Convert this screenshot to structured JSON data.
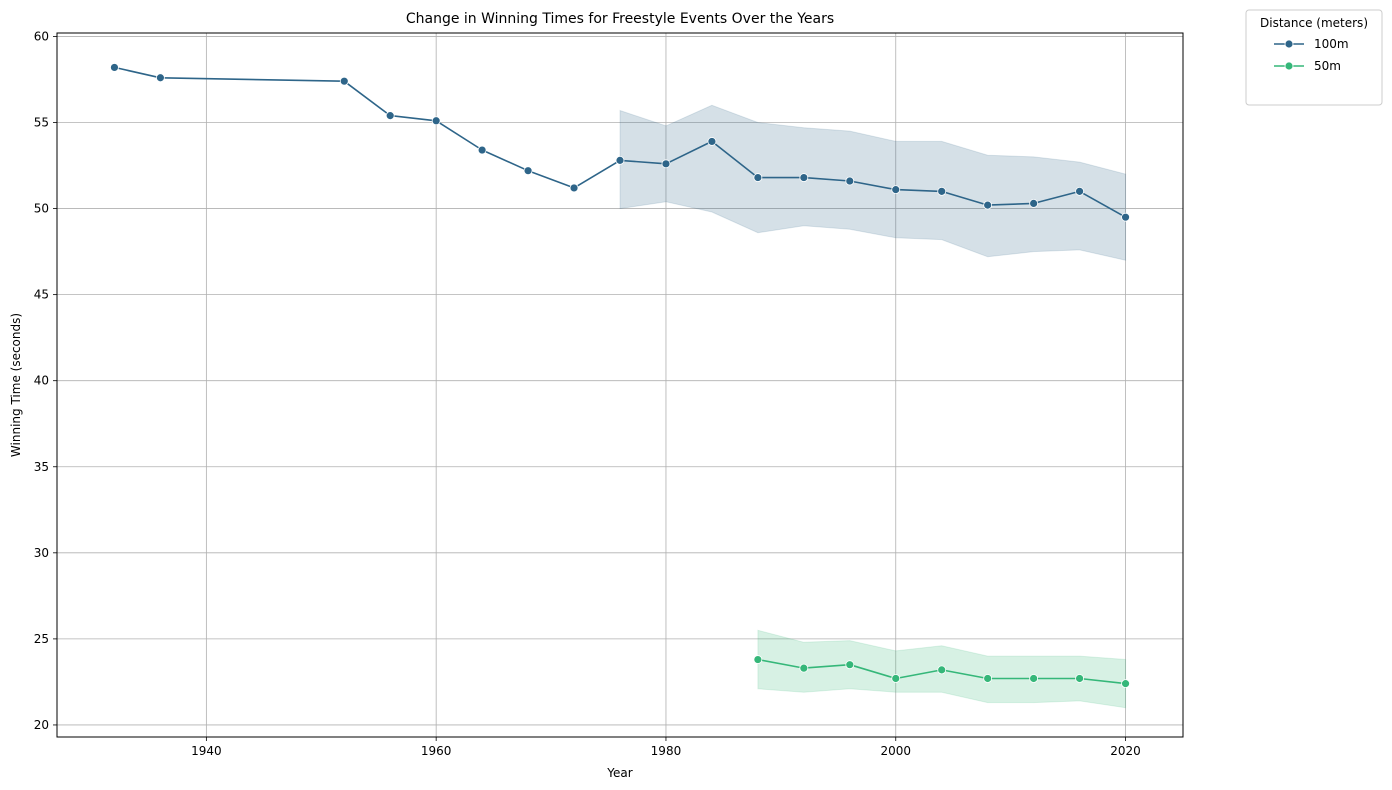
{
  "chart_data": {
    "type": "line",
    "title": "Change in Winning Times for Freestyle Events Over the Years",
    "xlabel": "Year",
    "ylabel": "Winning Time (seconds)",
    "xlim": [
      1927,
      2025
    ],
    "ylim": [
      19.3,
      60.2
    ],
    "xticks": [
      1940,
      1960,
      1980,
      2000,
      2020
    ],
    "yticks": [
      20,
      25,
      30,
      35,
      40,
      45,
      50,
      55,
      60
    ],
    "grid": true,
    "legend": {
      "title": "Distance (meters)",
      "placement": "outside-top-right"
    },
    "series": [
      {
        "name": "100m",
        "color": "#2e6589",
        "x": [
          1932,
          1936,
          1952,
          1956,
          1960,
          1964,
          1968,
          1972,
          1976,
          1980,
          1984,
          1988,
          1992,
          1996,
          2000,
          2004,
          2008,
          2012,
          2016,
          2020
        ],
        "y": [
          58.2,
          57.6,
          57.4,
          55.4,
          55.1,
          53.4,
          52.2,
          51.2,
          52.8,
          52.6,
          53.9,
          51.8,
          51.8,
          51.6,
          51.1,
          51.0,
          50.2,
          50.3,
          51.0,
          49.5
        ],
        "band_x": [
          1976,
          1980,
          1984,
          1988,
          1992,
          1996,
          2000,
          2004,
          2008,
          2012,
          2016,
          2020
        ],
        "band_low": [
          50.0,
          50.4,
          49.8,
          48.6,
          49.0,
          48.8,
          48.3,
          48.2,
          47.2,
          47.5,
          47.6,
          47.0
        ],
        "band_high": [
          55.7,
          54.8,
          56.0,
          55.0,
          54.7,
          54.5,
          53.9,
          53.9,
          53.1,
          53.0,
          52.7,
          52.0
        ]
      },
      {
        "name": "50m",
        "color": "#35b779",
        "x": [
          1988,
          1992,
          1996,
          2000,
          2004,
          2008,
          2012,
          2016,
          2020
        ],
        "y": [
          23.8,
          23.3,
          23.5,
          22.7,
          23.2,
          22.7,
          22.7,
          22.7,
          22.4
        ],
        "band_x": [
          1988,
          1992,
          1996,
          2000,
          2004,
          2008,
          2012,
          2016,
          2020
        ],
        "band_low": [
          22.1,
          21.9,
          22.1,
          21.9,
          21.9,
          21.3,
          21.3,
          21.4,
          21.0
        ],
        "band_high": [
          25.5,
          24.8,
          24.9,
          24.3,
          24.6,
          24.0,
          24.0,
          24.0,
          23.8
        ]
      }
    ]
  }
}
